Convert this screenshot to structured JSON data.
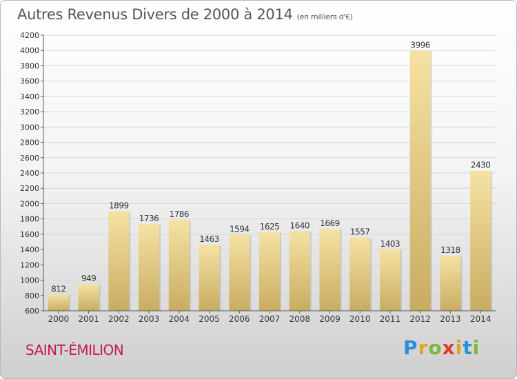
{
  "title": "Autres Revenus Divers de 2000 à 2014",
  "subtitle": "(en milliers d'€)",
  "location": "SAINT-ÉMILION",
  "brand": {
    "letters": [
      "P",
      "r",
      "o",
      "x",
      "i",
      "t",
      "i"
    ],
    "colors": [
      "#2a8fd6",
      "#e8a020",
      "#7cb83a",
      "#e23a2a",
      "#e8a020",
      "#2a8fd6",
      "#7cb83a"
    ]
  },
  "chart_data": {
    "type": "bar",
    "categories": [
      "2000",
      "2001",
      "2002",
      "2003",
      "2004",
      "2005",
      "2006",
      "2007",
      "2008",
      "2009",
      "2010",
      "2011",
      "2012",
      "2013",
      "2014"
    ],
    "values": [
      812,
      949,
      1899,
      1736,
      1786,
      1463,
      1594,
      1625,
      1640,
      1669,
      1557,
      1403,
      3996,
      1318,
      2430
    ],
    "ylim": [
      600,
      4200
    ],
    "yticks": [
      600,
      800,
      1000,
      1200,
      1400,
      1600,
      1800,
      2000,
      2200,
      2400,
      2600,
      2800,
      3000,
      3200,
      3400,
      3600,
      3800,
      4000,
      4200
    ],
    "grid": true,
    "colors": {
      "bar_light": "#f5e2a2",
      "bar_dark": "#c9ac62"
    }
  }
}
